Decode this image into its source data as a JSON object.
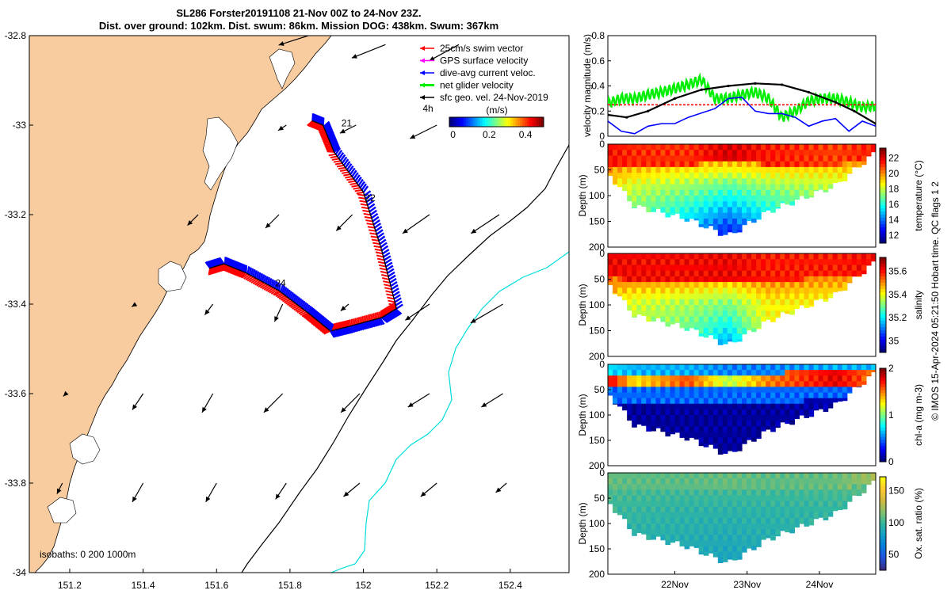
{
  "chart_data": [
    {
      "type": "map",
      "title_line1": "SL286 Forster20191108 21-Nov 00Z to 24-Nov 23Z.",
      "title_line2": "Dist. over ground: 102km. Dist. swum: 86km. Mission DOG: 438km. Swum: 367km",
      "x_ticks": [
        "151.2",
        "151.4",
        "151.6",
        "151.8",
        "152",
        "152.2",
        "152.4"
      ],
      "x_tick_values": [
        151.2,
        151.4,
        151.6,
        151.8,
        152.0,
        152.2,
        152.4
      ],
      "y_ticks": [
        "-32.8",
        "-33",
        "-33.2",
        "-33.4",
        "-33.6",
        "-33.8",
        "-34"
      ],
      "y_tick_values": [
        -32.8,
        -33.0,
        -33.2,
        -33.4,
        -33.6,
        -33.8,
        -34.0
      ],
      "xlim": [
        151.09,
        152.56
      ],
      "ylim": [
        -34.0,
        -32.8
      ],
      "legend": [
        {
          "label": "25cm/s swim vector",
          "color": "#ff0000"
        },
        {
          "label": "GPS surface velocity",
          "color": "#ff00ff"
        },
        {
          "label": "dive-avg current veloc.",
          "color": "#0000ff"
        },
        {
          "label": "net glider velocity",
          "color": "#00ee00"
        },
        {
          "label": "sfc geo. vel. 24-Nov-2019",
          "color": "#000000"
        }
      ],
      "colorbar_title": "(m/s)",
      "colorbar_note": "4h",
      "colorbar_ticks": [
        "0",
        "0.2",
        "0.4"
      ],
      "colorbar_tick_values": [
        0,
        0.2,
        0.4
      ],
      "colorbar_range": [
        -0.02,
        0.5
      ],
      "day_labels": [
        {
          "text": "21",
          "lon": 151.94,
          "lat": -33.003
        },
        {
          "text": "22",
          "lon": 152.004,
          "lat": -33.17
        },
        {
          "text": "24",
          "lon": 151.76,
          "lat": -33.36
        }
      ],
      "isobath_label": "isobaths: 0   200  1000m",
      "track": [
        [
          151.91,
          -33.46
        ],
        [
          151.96,
          -33.45
        ],
        [
          152.05,
          -33.43
        ],
        [
          152.09,
          -33.41
        ],
        [
          152.05,
          -33.28
        ],
        [
          152.0,
          -33.15
        ],
        [
          151.92,
          -33.06
        ],
        [
          151.89,
          -33.0
        ],
        [
          151.86,
          -32.99
        ]
      ],
      "track2": [
        [
          151.91,
          -33.46
        ],
        [
          151.85,
          -33.42
        ],
        [
          151.77,
          -33.37
        ],
        [
          151.68,
          -33.33
        ],
        [
          151.62,
          -33.31
        ],
        [
          151.58,
          -33.32
        ]
      ],
      "geo_vectors": [
        {
          "lon": 151.85,
          "lat": -32.8,
          "u": -0.22,
          "v": -0.07
        },
        {
          "lon": 152.06,
          "lat": -32.82,
          "u": -0.25,
          "v": -0.1
        },
        {
          "lon": 152.26,
          "lat": -32.82,
          "u": -0.22,
          "v": -0.12
        },
        {
          "lon": 151.79,
          "lat": -33.0,
          "u": -0.06,
          "v": -0.04
        },
        {
          "lon": 151.98,
          "lat": -33.0,
          "u": -0.12,
          "v": -0.06
        },
        {
          "lon": 152.2,
          "lat": -33.0,
          "u": -0.2,
          "v": -0.1
        },
        {
          "lon": 151.55,
          "lat": -33.2,
          "u": -0.08,
          "v": -0.08
        },
        {
          "lon": 151.77,
          "lat": -33.2,
          "u": -0.1,
          "v": -0.1
        },
        {
          "lon": 151.97,
          "lat": -33.2,
          "u": -0.12,
          "v": -0.12
        },
        {
          "lon": 152.18,
          "lat": -33.2,
          "u": -0.2,
          "v": -0.14
        },
        {
          "lon": 152.37,
          "lat": -33.2,
          "u": -0.21,
          "v": -0.14
        },
        {
          "lon": 151.38,
          "lat": -33.4,
          "u": -0.03,
          "v": -0.02
        },
        {
          "lon": 151.59,
          "lat": -33.4,
          "u": -0.06,
          "v": -0.08
        },
        {
          "lon": 151.78,
          "lat": -33.4,
          "u": -0.06,
          "v": -0.13
        },
        {
          "lon": 151.96,
          "lat": -33.4,
          "u": -0.06,
          "v": -0.05
        },
        {
          "lon": 152.18,
          "lat": -33.4,
          "u": -0.18,
          "v": -0.12
        },
        {
          "lon": 152.38,
          "lat": -33.4,
          "u": -0.24,
          "v": -0.14
        },
        {
          "lon": 151.19,
          "lat": -33.6,
          "u": -0.02,
          "v": -0.02
        },
        {
          "lon": 151.4,
          "lat": -33.6,
          "u": -0.08,
          "v": -0.12
        },
        {
          "lon": 151.59,
          "lat": -33.6,
          "u": -0.08,
          "v": -0.14
        },
        {
          "lon": 151.78,
          "lat": -33.6,
          "u": -0.14,
          "v": -0.14
        },
        {
          "lon": 151.99,
          "lat": -33.6,
          "u": -0.14,
          "v": -0.14
        },
        {
          "lon": 152.18,
          "lat": -33.6,
          "u": -0.16,
          "v": -0.1
        },
        {
          "lon": 152.38,
          "lat": -33.6,
          "u": -0.16,
          "v": -0.1
        },
        {
          "lon": 151.18,
          "lat": -33.8,
          "u": -0.04,
          "v": -0.08
        },
        {
          "lon": 151.4,
          "lat": -33.8,
          "u": -0.08,
          "v": -0.14
        },
        {
          "lon": 151.6,
          "lat": -33.8,
          "u": -0.08,
          "v": -0.14
        },
        {
          "lon": 151.79,
          "lat": -33.8,
          "u": -0.08,
          "v": -0.12
        },
        {
          "lon": 151.99,
          "lat": -33.8,
          "u": -0.12,
          "v": -0.1
        },
        {
          "lon": 152.2,
          "lat": -33.8,
          "u": -0.12,
          "v": -0.1
        },
        {
          "lon": 152.39,
          "lat": -33.8,
          "u": -0.08,
          "v": -0.07
        }
      ]
    },
    {
      "type": "line",
      "ylabel": "velocity magnitude (m/s)",
      "y_ticks": [
        "0",
        "0.2",
        "0.4",
        "0.6",
        "0.8"
      ],
      "y_tick_values": [
        0,
        0.2,
        0.4,
        0.6,
        0.8
      ],
      "ylim": [
        0,
        0.8
      ],
      "xlim": [
        0,
        1
      ],
      "series": [
        {
          "name": "net glider velocity",
          "color": "#00ee00",
          "x": [
            0,
            0.05,
            0.1,
            0.15,
            0.2,
            0.25,
            0.3,
            0.35,
            0.4,
            0.45,
            0.5,
            0.55,
            0.6,
            0.65,
            0.7,
            0.75,
            0.8,
            0.85,
            0.9,
            0.95,
            1
          ],
          "y": [
            0.26,
            0.3,
            0.3,
            0.33,
            0.35,
            0.38,
            0.41,
            0.45,
            0.3,
            0.3,
            0.33,
            0.35,
            0.3,
            0.15,
            0.2,
            0.28,
            0.3,
            0.3,
            0.27,
            0.23,
            0.24
          ]
        },
        {
          "name": "25cm/s swim vector",
          "color": "#ff0000",
          "x": [
            0,
            1
          ],
          "y": [
            0.25,
            0.25
          ]
        },
        {
          "name": "sfc geo. vel.",
          "color": "#000000",
          "x": [
            0,
            0.07,
            0.15,
            0.25,
            0.35,
            0.45,
            0.55,
            0.65,
            0.75,
            0.85,
            0.92,
            1
          ],
          "y": [
            0.17,
            0.15,
            0.2,
            0.3,
            0.37,
            0.4,
            0.42,
            0.41,
            0.35,
            0.27,
            0.2,
            0.1
          ]
        },
        {
          "name": "dive-avg current veloc.",
          "color": "#0000ff",
          "x": [
            0,
            0.05,
            0.1,
            0.15,
            0.2,
            0.25,
            0.3,
            0.4,
            0.45,
            0.5,
            0.55,
            0.6,
            0.65,
            0.7,
            0.75,
            0.8,
            0.85,
            0.9,
            0.95,
            1
          ],
          "y": [
            0.12,
            0.04,
            0.02,
            0.08,
            0.1,
            0.1,
            0.15,
            0.22,
            0.3,
            0.31,
            0.2,
            0.18,
            0.18,
            0.15,
            0.08,
            0.12,
            0.14,
            0.04,
            0.12,
            0.08
          ]
        }
      ]
    },
    {
      "type": "heatmap",
      "ylabel": "Depth (m)",
      "colorbar_label": "temperature (°C)",
      "y_ticks": [
        "0",
        "50",
        "100",
        "150",
        "200"
      ],
      "y_tick_values": [
        0,
        50,
        100,
        150,
        200
      ],
      "colorbar_ticks": [
        "12",
        "14",
        "16",
        "18",
        "20",
        "22"
      ],
      "colorbar_tick_values": [
        12,
        14,
        16,
        18,
        20,
        22
      ],
      "colorbar_range": [
        11,
        23.3
      ],
      "profile": [
        {
          "x": 0.0,
          "surface": 21.7,
          "thermo": 40,
          "mid": 19.0,
          "deep": 17.5,
          "bottom": 55
        },
        {
          "x": 0.1,
          "surface": 21.3,
          "thermo": 45,
          "mid": 18.0,
          "deep": 16.0,
          "bottom": 120
        },
        {
          "x": 0.3,
          "surface": 21.2,
          "thermo": 40,
          "mid": 17.5,
          "deep": 14.5,
          "bottom": 145
        },
        {
          "x": 0.45,
          "surface": 22.3,
          "thermo": 35,
          "mid": 17.0,
          "deep": 13.0,
          "bottom": 178
        },
        {
          "x": 0.6,
          "surface": 21.5,
          "thermo": 40,
          "mid": 17.5,
          "deep": 14.5,
          "bottom": 130
        },
        {
          "x": 0.85,
          "surface": 21.0,
          "thermo": 40,
          "mid": 18.0,
          "deep": 16.0,
          "bottom": 80
        },
        {
          "x": 1.0,
          "surface": 21.5,
          "thermo": 35,
          "mid": 19.0,
          "deep": 18.0,
          "bottom": 15
        }
      ]
    },
    {
      "type": "heatmap",
      "ylabel": "Depth (m)",
      "colorbar_label": "salinity",
      "y_ticks": [
        "0",
        "50",
        "100",
        "150",
        "200"
      ],
      "y_tick_values": [
        0,
        50,
        100,
        150,
        200
      ],
      "colorbar_ticks": [
        "35",
        "35.2",
        "35.4",
        "35.6"
      ],
      "colorbar_tick_values": [
        35.0,
        35.2,
        35.4,
        35.6
      ],
      "colorbar_range": [
        34.9,
        35.72
      ],
      "profile": [
        {
          "x": 0.0,
          "surface": 35.63,
          "thermo": 45,
          "mid": 35.45,
          "deep": 35.4,
          "bottom": 55
        },
        {
          "x": 0.1,
          "surface": 35.62,
          "thermo": 55,
          "mid": 35.38,
          "deep": 35.32,
          "bottom": 120
        },
        {
          "x": 0.3,
          "surface": 35.62,
          "thermo": 55,
          "mid": 35.35,
          "deep": 35.25,
          "bottom": 145
        },
        {
          "x": 0.45,
          "surface": 35.63,
          "thermo": 50,
          "mid": 35.33,
          "deep": 35.12,
          "bottom": 178
        },
        {
          "x": 0.6,
          "surface": 35.6,
          "thermo": 55,
          "mid": 35.42,
          "deep": 35.38,
          "bottom": 130
        },
        {
          "x": 0.85,
          "surface": 35.6,
          "thermo": 45,
          "mid": 35.42,
          "deep": 35.38,
          "bottom": 80
        },
        {
          "x": 1.0,
          "surface": 35.62,
          "thermo": 40,
          "mid": 35.45,
          "deep": 35.4,
          "bottom": 15
        }
      ]
    },
    {
      "type": "heatmap",
      "ylabel": "Depth (m)",
      "colorbar_label": "chl-a (mg m-3)",
      "y_ticks": [
        "0",
        "50",
        "100",
        "150",
        "200"
      ],
      "y_tick_values": [
        0,
        50,
        100,
        150,
        200
      ],
      "colorbar_ticks": [
        "0",
        "1",
        "2"
      ],
      "colorbar_tick_values": [
        0,
        1,
        2
      ],
      "colorbar_range": [
        0,
        2
      ],
      "profile": [
        {
          "x": 0.0,
          "surface": 0.7,
          "thermo": 30,
          "mid": 1.8,
          "deep": 0.1,
          "bottom": 55
        },
        {
          "x": 0.1,
          "surface": 0.6,
          "thermo": 30,
          "mid": 1.3,
          "deep": 0.05,
          "bottom": 120
        },
        {
          "x": 0.3,
          "surface": 0.6,
          "thermo": 30,
          "mid": 1.6,
          "deep": 0.05,
          "bottom": 145
        },
        {
          "x": 0.45,
          "surface": 0.5,
          "thermo": 35,
          "mid": 1.1,
          "deep": 0.05,
          "bottom": 178
        },
        {
          "x": 0.6,
          "surface": 0.5,
          "thermo": 30,
          "mid": 1.5,
          "deep": 0.05,
          "bottom": 130
        },
        {
          "x": 0.85,
          "surface": 0.6,
          "thermo": 25,
          "mid": 1.8,
          "deep": 0.1,
          "bottom": 80
        },
        {
          "x": 1.0,
          "surface": 0.6,
          "thermo": 25,
          "mid": 1.5,
          "deep": 0.2,
          "bottom": 15
        }
      ]
    },
    {
      "type": "heatmap",
      "ylabel": "Depth (m)",
      "colorbar_label": "Ox. sat. ratio (%)",
      "y_ticks": [
        "0",
        "50",
        "100",
        "150",
        "200"
      ],
      "y_tick_values": [
        0,
        50,
        100,
        150,
        200
      ],
      "colorbar_ticks": [
        "50",
        "100",
        "150"
      ],
      "colorbar_tick_values": [
        50,
        100,
        150
      ],
      "colorbar_range": [
        25,
        172
      ],
      "x_ticks": [
        "22Nov",
        "23Nov",
        "24Nov"
      ],
      "x_tick_values": [
        0.25,
        0.52,
        0.79
      ],
      "profile": [
        {
          "x": 0.0,
          "surface": 110,
          "thermo": 30,
          "mid": 100,
          "deep": 95,
          "bottom": 55
        },
        {
          "x": 0.1,
          "surface": 108,
          "thermo": 35,
          "mid": 98,
          "deep": 90,
          "bottom": 120
        },
        {
          "x": 0.3,
          "surface": 108,
          "thermo": 35,
          "mid": 95,
          "deep": 88,
          "bottom": 145
        },
        {
          "x": 0.45,
          "surface": 110,
          "thermo": 30,
          "mid": 95,
          "deep": 85,
          "bottom": 178
        },
        {
          "x": 0.6,
          "surface": 108,
          "thermo": 35,
          "mid": 95,
          "deep": 88,
          "bottom": 130
        },
        {
          "x": 0.85,
          "surface": 110,
          "thermo": 30,
          "mid": 98,
          "deep": 92,
          "bottom": 80
        },
        {
          "x": 1.0,
          "surface": 125,
          "thermo": 25,
          "mid": 100,
          "deep": 95,
          "bottom": 15
        }
      ]
    }
  ],
  "credit": "© IMOS 15-Apr-2024 05:21:50 Hobart time. QC flags 1  2",
  "colors": {
    "land": "#f9cc9f",
    "swim": "#ff0000",
    "current": "#0000ff",
    "net": "#00ee00",
    "isobath200": "#000000",
    "isobath1000": "#00dddd"
  }
}
